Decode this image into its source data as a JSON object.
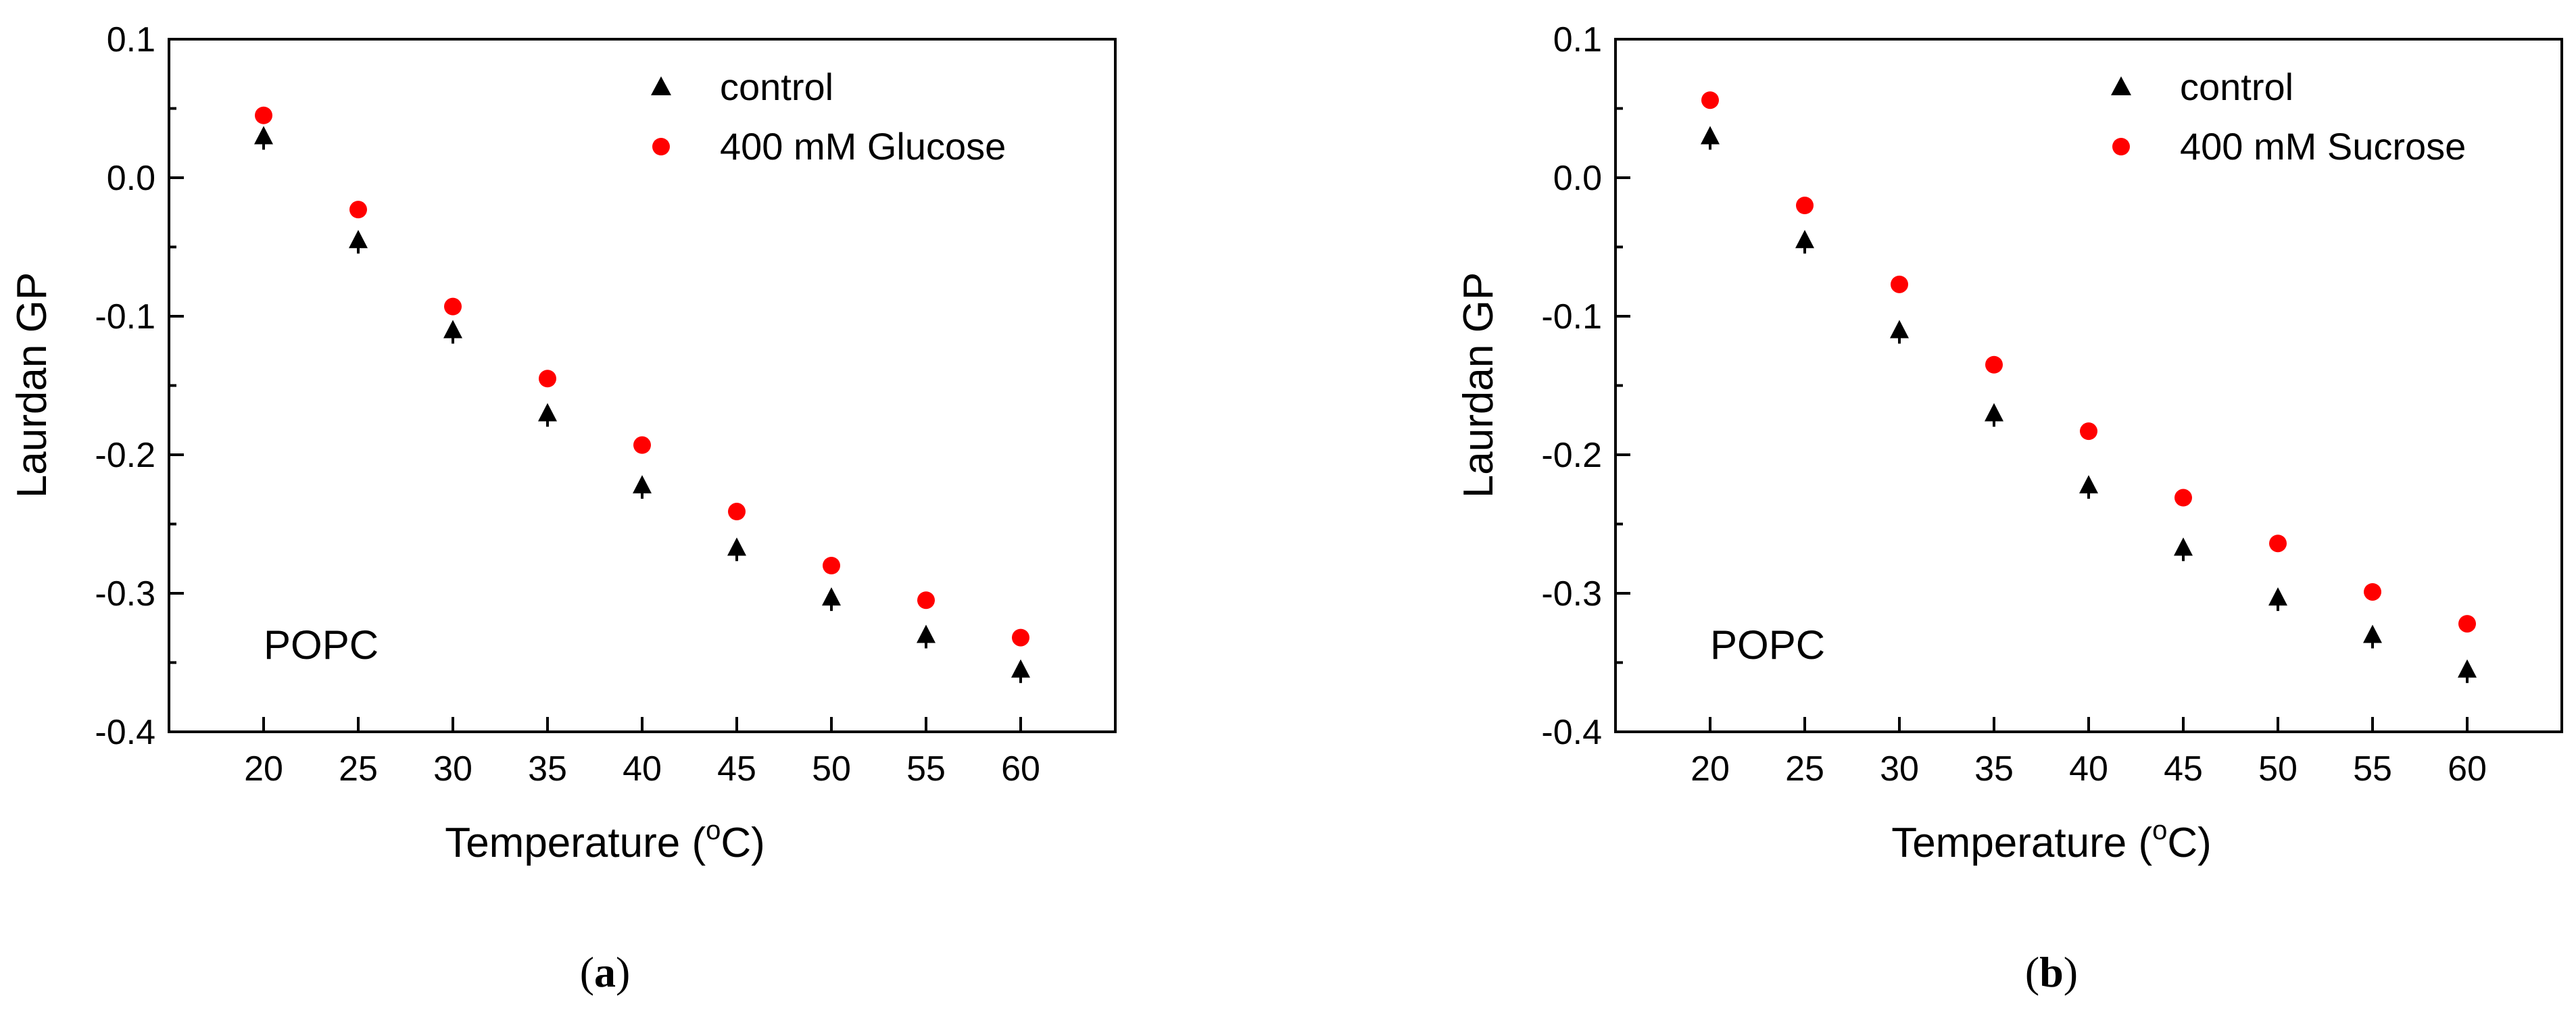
{
  "colors": {
    "control": "#000000",
    "treatment": "#ff0000",
    "axis": "#000000"
  },
  "icons": {
    "control": "triangle-marker-icon",
    "treatment": "circle-marker-icon"
  },
  "chart_data": [
    {
      "type": "scatter",
      "panel_label": "a",
      "xlabel": "Temperature (",
      "xlabel_sup": "o",
      "xlabel_tail": "C)",
      "ylabel": "Laurdan GP",
      "xlim": [
        15,
        65
      ],
      "ylim": [
        -0.4,
        0.1
      ],
      "xticks": [
        20,
        25,
        30,
        35,
        40,
        45,
        50,
        55,
        60
      ],
      "xtick_labels": [
        "20",
        "25",
        "30",
        "35",
        "40",
        "45",
        "50",
        "55",
        "60"
      ],
      "yticks": [
        0.1,
        0.0,
        -0.1,
        -0.2,
        -0.3,
        -0.4
      ],
      "ytick_labels": [
        "0.1",
        "0.0",
        "-0.1",
        "-0.2",
        "-0.3",
        "-0.4"
      ],
      "annotation": "POPC",
      "legend_position": "top-right",
      "grid": false,
      "x": [
        20,
        25,
        30,
        35,
        40,
        45,
        50,
        55,
        60
      ],
      "series": [
        {
          "name": "control",
          "marker": "triangle",
          "values": [
            0.03,
            -0.045,
            -0.11,
            -0.17,
            -0.222,
            -0.267,
            -0.303,
            -0.33,
            -0.355
          ]
        },
        {
          "name": "400 mM Glucose",
          "marker": "circle",
          "values": [
            0.045,
            -0.023,
            -0.093,
            -0.145,
            -0.193,
            -0.241,
            -0.28,
            -0.305,
            -0.332
          ]
        }
      ]
    },
    {
      "type": "scatter",
      "panel_label": "b",
      "xlabel": "Temperature (",
      "xlabel_sup": "o",
      "xlabel_tail": "C)",
      "ylabel": "Laurdan GP",
      "xlim": [
        15,
        65
      ],
      "ylim": [
        -0.4,
        0.1
      ],
      "xticks": [
        20,
        25,
        30,
        35,
        40,
        45,
        50,
        55,
        60
      ],
      "xtick_labels": [
        "20",
        "25",
        "30",
        "35",
        "40",
        "45",
        "50",
        "55",
        "60"
      ],
      "yticks": [
        0.1,
        0.0,
        -0.1,
        -0.2,
        -0.3,
        -0.4
      ],
      "ytick_labels": [
        "0.1",
        "0.0",
        "-0.1",
        "-0.2",
        "-0.3",
        "-0.4"
      ],
      "annotation": "POPC",
      "legend_position": "top-right",
      "grid": false,
      "x": [
        20,
        25,
        30,
        35,
        40,
        45,
        50,
        55,
        60
      ],
      "series": [
        {
          "name": "control",
          "marker": "triangle",
          "values": [
            0.03,
            -0.045,
            -0.11,
            -0.17,
            -0.222,
            -0.267,
            -0.303,
            -0.33,
            -0.355
          ]
        },
        {
          "name": "400 mM Sucrose",
          "marker": "circle",
          "values": [
            0.056,
            -0.02,
            -0.077,
            -0.135,
            -0.183,
            -0.231,
            -0.264,
            -0.299,
            -0.322
          ]
        }
      ]
    }
  ]
}
